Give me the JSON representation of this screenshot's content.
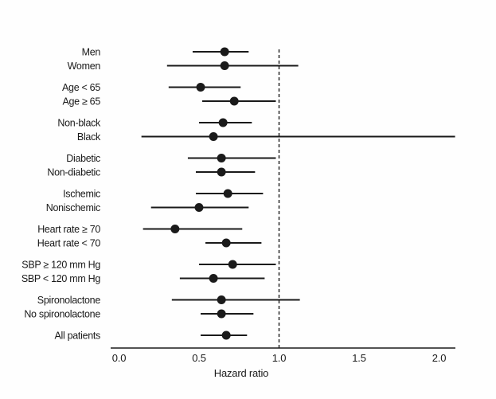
{
  "figure": {
    "background": "#fefefe",
    "ink_color": "#1a1a1a"
  },
  "chart_data": {
    "type": "scatter",
    "subtype": "forest-plot",
    "title": "",
    "xlabel": "Hazard ratio",
    "xlim": [
      -0.05,
      2.1
    ],
    "xticks": [
      "0.0",
      "0.5",
      "1.0",
      "1.5",
      "2.0"
    ],
    "xtick_values": [
      0,
      0.5,
      1,
      1.5,
      2
    ],
    "reference_line_x": 1.0,
    "reference_line_style": "dashed",
    "grid": false,
    "legend": false,
    "marker": "filled-circle",
    "groups": [
      {
        "rows": [
          {
            "label": "Men",
            "hazard_ratio": 0.66,
            "ci_low": 0.46,
            "ci_high": 0.81
          },
          {
            "label": "Women",
            "hazard_ratio": 0.66,
            "ci_low": 0.3,
            "ci_high": 1.12
          }
        ]
      },
      {
        "rows": [
          {
            "label": "Age < 65",
            "hazard_ratio": 0.51,
            "ci_low": 0.31,
            "ci_high": 0.76
          },
          {
            "label": "Age ≥ 65",
            "hazard_ratio": 0.72,
            "ci_low": 0.52,
            "ci_high": 0.98
          }
        ]
      },
      {
        "rows": [
          {
            "label": "Non-black",
            "hazard_ratio": 0.65,
            "ci_low": 0.5,
            "ci_high": 0.83
          },
          {
            "label": "Black",
            "hazard_ratio": 0.59,
            "ci_low": 0.14,
            "ci_high": 2.1
          }
        ]
      },
      {
        "rows": [
          {
            "label": "Diabetic",
            "hazard_ratio": 0.64,
            "ci_low": 0.43,
            "ci_high": 0.98
          },
          {
            "label": "Non-diabetic",
            "hazard_ratio": 0.64,
            "ci_low": 0.48,
            "ci_high": 0.85
          }
        ]
      },
      {
        "rows": [
          {
            "label": "Ischemic",
            "hazard_ratio": 0.68,
            "ci_low": 0.48,
            "ci_high": 0.9
          },
          {
            "label": "Nonischemic",
            "hazard_ratio": 0.5,
            "ci_low": 0.2,
            "ci_high": 0.81
          }
        ]
      },
      {
        "rows": [
          {
            "label": "Heart rate ≥ 70",
            "hazard_ratio": 0.35,
            "ci_low": 0.15,
            "ci_high": 0.77
          },
          {
            "label": "Heart rate < 70",
            "hazard_ratio": 0.67,
            "ci_low": 0.54,
            "ci_high": 0.89
          }
        ]
      },
      {
        "rows": [
          {
            "label": "SBP ≥ 120 mm Hg",
            "hazard_ratio": 0.71,
            "ci_low": 0.5,
            "ci_high": 0.98
          },
          {
            "label": "SBP < 120 mm Hg",
            "hazard_ratio": 0.59,
            "ci_low": 0.38,
            "ci_high": 0.91
          }
        ]
      },
      {
        "rows": [
          {
            "label": "Spironolactone",
            "hazard_ratio": 0.64,
            "ci_low": 0.33,
            "ci_high": 1.13
          },
          {
            "label": "No spironolactone",
            "hazard_ratio": 0.64,
            "ci_low": 0.51,
            "ci_high": 0.84
          }
        ]
      },
      {
        "rows": [
          {
            "label": "All patients",
            "hazard_ratio": 0.67,
            "ci_low": 0.51,
            "ci_high": 0.8
          }
        ]
      }
    ]
  }
}
